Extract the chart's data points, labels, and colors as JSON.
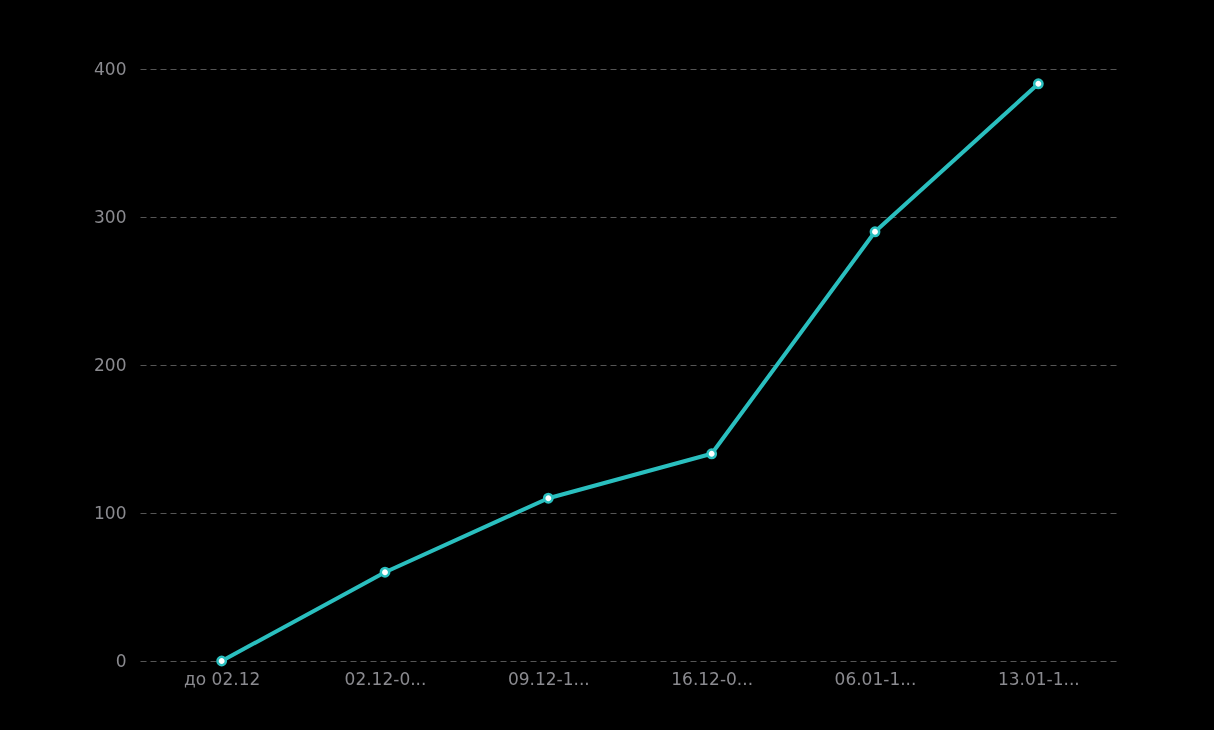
{
  "chart_data": {
    "type": "line",
    "categories": [
      "до 02.12",
      "02.12-0...",
      "09.12-1...",
      "16.12-0...",
      "06.01-1...",
      "13.01-1..."
    ],
    "series": [
      {
        "color": "#2abfbf",
        "values": [
          0,
          60,
          110,
          140,
          290,
          390
        ]
      }
    ],
    "ylim": [
      0,
      400
    ],
    "yticks": [
      0,
      100,
      200,
      300,
      400
    ],
    "grid": "y",
    "legend": false,
    "marker": "circle",
    "line_style": "solid"
  }
}
